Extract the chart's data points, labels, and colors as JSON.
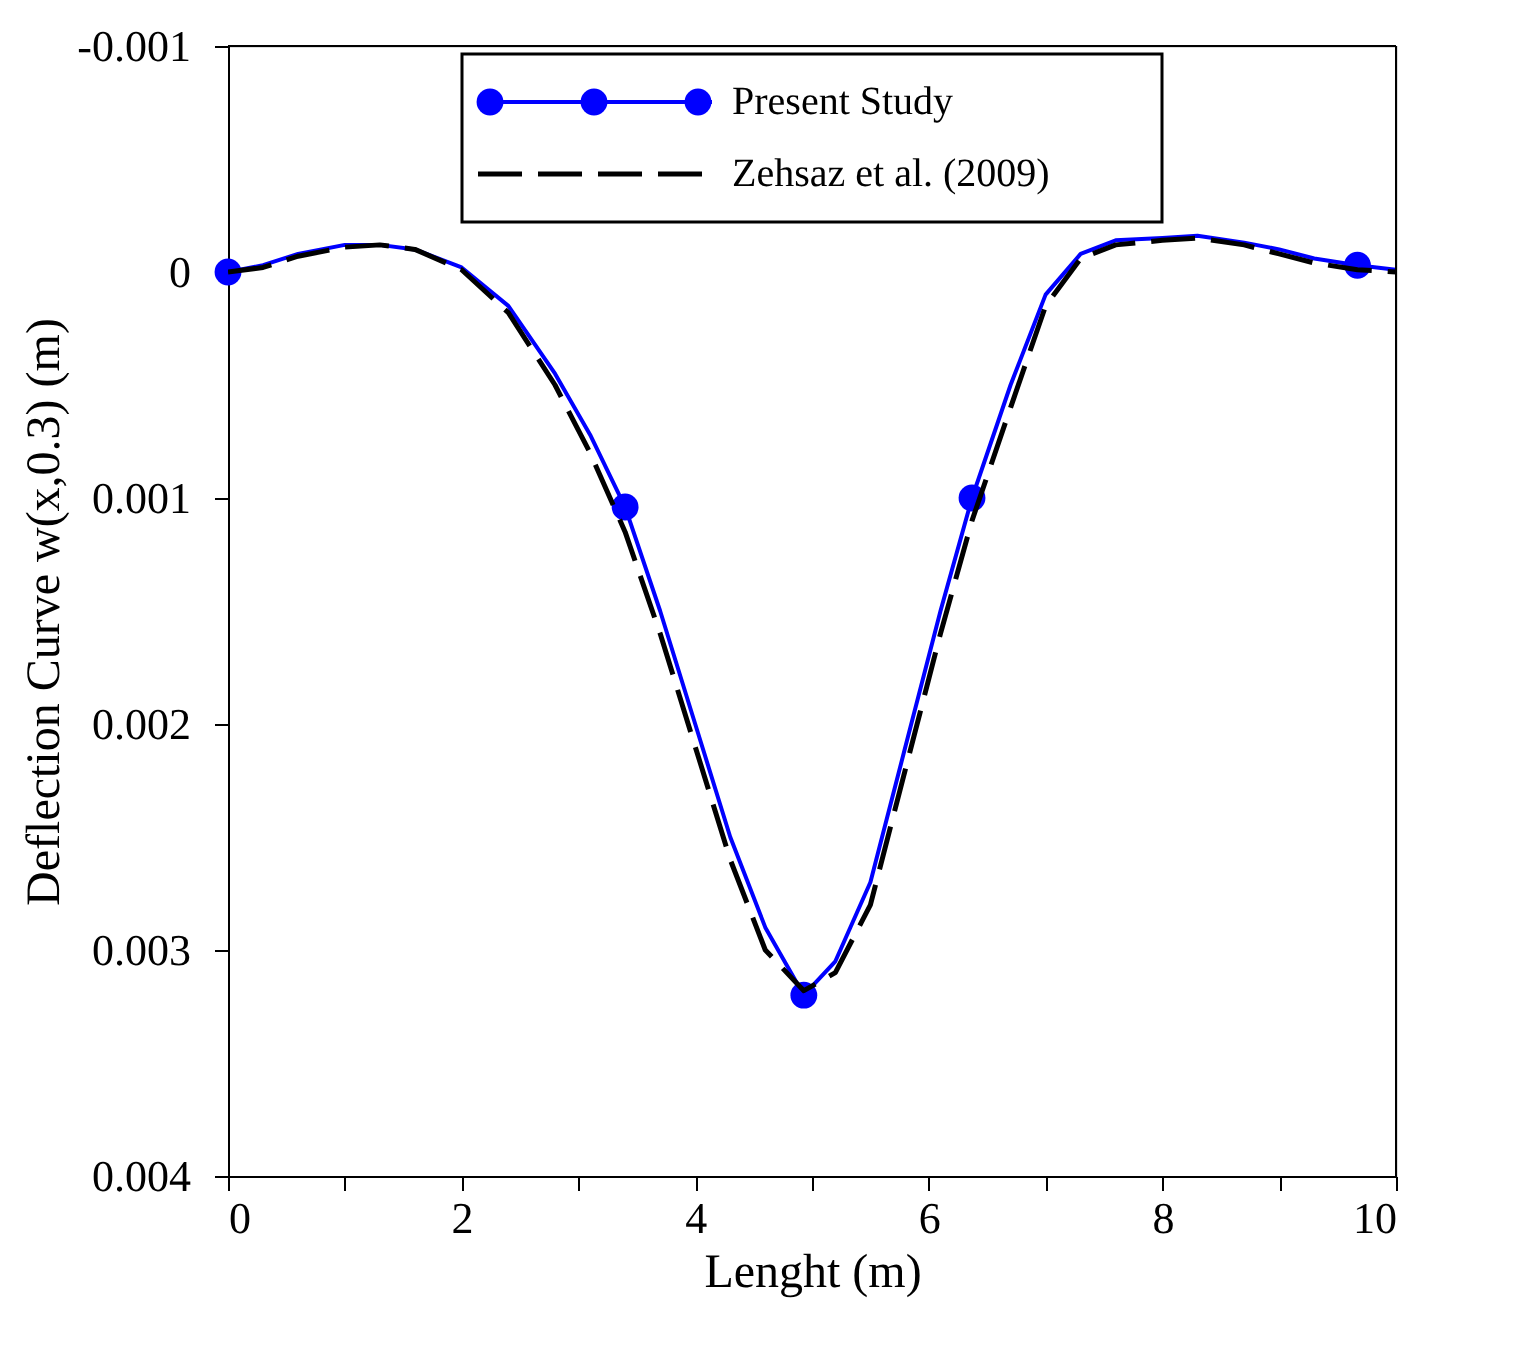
{
  "chart_data": {
    "type": "line",
    "xlabel": "Lenght (m)",
    "ylabel": "Deflection Curve w(x,0.3) (m)",
    "xlim": [
      0,
      10
    ],
    "xticks": [
      0,
      {
        "value": 1,
        "label": null
      },
      2,
      {
        "value": 3,
        "label": null
      },
      4,
      {
        "value": 5,
        "label": null
      },
      6,
      {
        "value": 7,
        "label": null
      },
      8,
      {
        "value": 9,
        "label": null
      },
      10
    ],
    "ylim": [
      0.004,
      -0.001
    ],
    "yticks": [
      -0.001,
      0,
      0.001,
      0.002,
      0.003,
      0.004
    ],
    "grid": false,
    "legend": "top",
    "series": [
      {
        "name": "Present Study",
        "type": "line",
        "color": "#0000ff",
        "line_style": "solid",
        "x": [
          0,
          0.3,
          0.6,
          1.0,
          1.3,
          1.6,
          2.0,
          2.4,
          2.8,
          3.1,
          3.4,
          3.7,
          4.0,
          4.3,
          4.6,
          4.93,
          5.2,
          5.5,
          5.8,
          6.1,
          6.37,
          6.7,
          7.0,
          7.3,
          7.6,
          8.0,
          8.3,
          8.7,
          9.0,
          9.3,
          9.67,
          10
        ],
        "values": [
          0,
          -3e-05,
          -8e-05,
          -0.00012,
          -0.00012,
          -0.0001,
          -2e-05,
          0.00015,
          0.00045,
          0.00072,
          0.00104,
          0.0015,
          0.002,
          0.0025,
          0.0029,
          0.0032,
          0.00305,
          0.0027,
          0.0021,
          0.0015,
          0.001,
          0.0005,
          0.0001,
          -8e-05,
          -0.00014,
          -0.00015,
          -0.00016,
          -0.00013,
          -0.0001,
          -6e-05,
          -3e-05,
          -1e-05
        ]
      },
      {
        "type": "scatter",
        "color": "#0000ff",
        "marker": "circle",
        "x": [
          0,
          3.4,
          4.93,
          6.37,
          9.67
        ],
        "values": [
          0,
          0.00104,
          0.0032,
          0.001,
          -3e-05
        ]
      },
      {
        "name": "Zehsaz et al. (2009)",
        "type": "line",
        "color": "#000000",
        "line_style": "dashed",
        "x": [
          0,
          0.3,
          0.6,
          1.0,
          1.3,
          1.6,
          2.0,
          2.4,
          2.8,
          3.1,
          3.4,
          3.7,
          4.0,
          4.3,
          4.6,
          4.93,
          5.2,
          5.5,
          5.8,
          6.1,
          6.37,
          6.7,
          7.0,
          7.3,
          7.6,
          8.0,
          8.3,
          8.7,
          9.0,
          9.3,
          9.67,
          10
        ],
        "values": [
          0,
          -2e-05,
          -7e-05,
          -0.00011,
          -0.00012,
          -0.0001,
          -1e-05,
          0.00018,
          0.0005,
          0.0008,
          0.00115,
          0.0016,
          0.0021,
          0.0026,
          0.003,
          0.00318,
          0.0031,
          0.0028,
          0.0022,
          0.0016,
          0.0011,
          0.0006,
          0.00015,
          -6e-05,
          -0.00012,
          -0.00014,
          -0.00015,
          -0.00012,
          -8e-05,
          -4e-05,
          -1e-05,
          0
        ]
      }
    ]
  }
}
